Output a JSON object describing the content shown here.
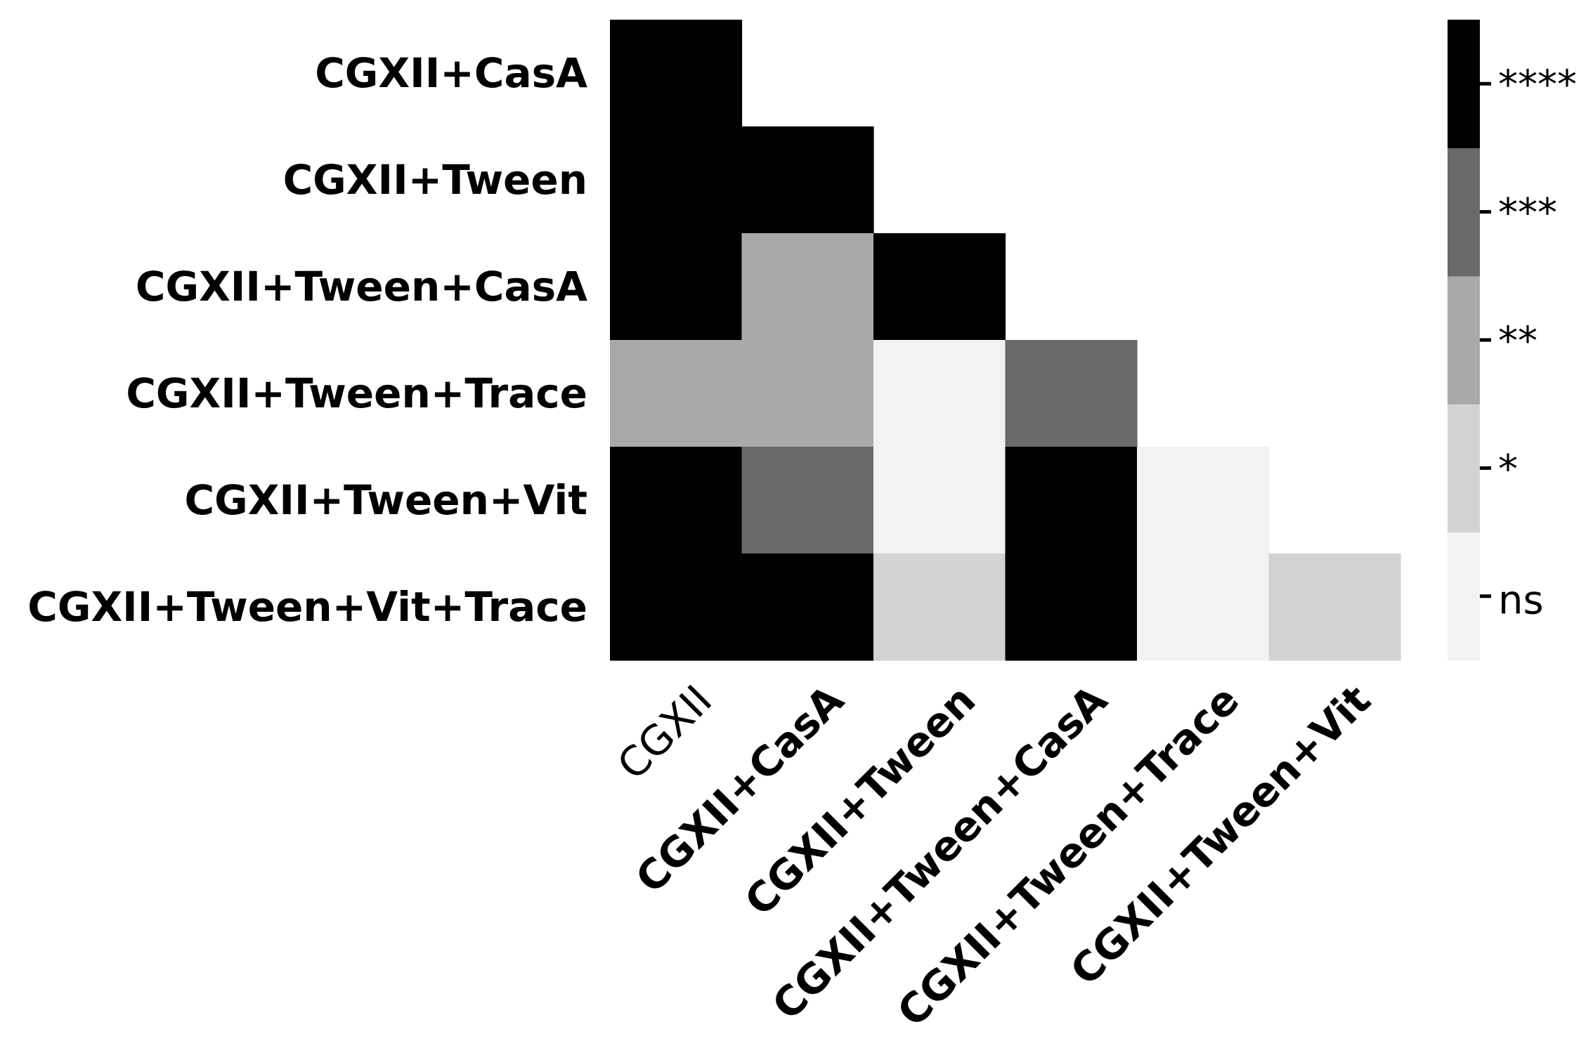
{
  "chart_data": {
    "type": "heatmap",
    "title": "",
    "xlabel": "",
    "ylabel": "",
    "rows": [
      "CGXII+CasA",
      "CGXII+Tween",
      "CGXII+Tween+CasA",
      "CGXII+Tween+Trace",
      "CGXII+Tween+Vit",
      "CGXII+Tween+Vit+Trace"
    ],
    "columns": [
      "CGXII",
      "CGXII+CasA",
      "CGXII+Tween",
      "CGXII+Tween+CasA",
      "CGXII+Tween+Trace",
      "CGXII+Tween+Vit"
    ],
    "column_bold": [
      false,
      true,
      true,
      true,
      true,
      true
    ],
    "values": [
      [
        "****",
        null,
        null,
        null,
        null,
        null
      ],
      [
        "****",
        "****",
        null,
        null,
        null,
        null
      ],
      [
        "****",
        "**",
        "****",
        null,
        null,
        null
      ],
      [
        "**",
        "**",
        "ns",
        "***",
        null,
        null
      ],
      [
        "****",
        "***",
        "ns",
        "****",
        "ns",
        null
      ],
      [
        "****",
        "****",
        "*",
        "****",
        "ns",
        "*"
      ]
    ],
    "colorbar": {
      "levels": [
        "ns",
        "*",
        "**",
        "***",
        "****"
      ],
      "colors": {
        "ns": "#f2f2f2",
        "*": "#d3d3d3",
        "**": "#a9a9a9",
        "***": "#696969",
        "****": "#000000"
      }
    },
    "legend_position": "right",
    "grid": false
  }
}
